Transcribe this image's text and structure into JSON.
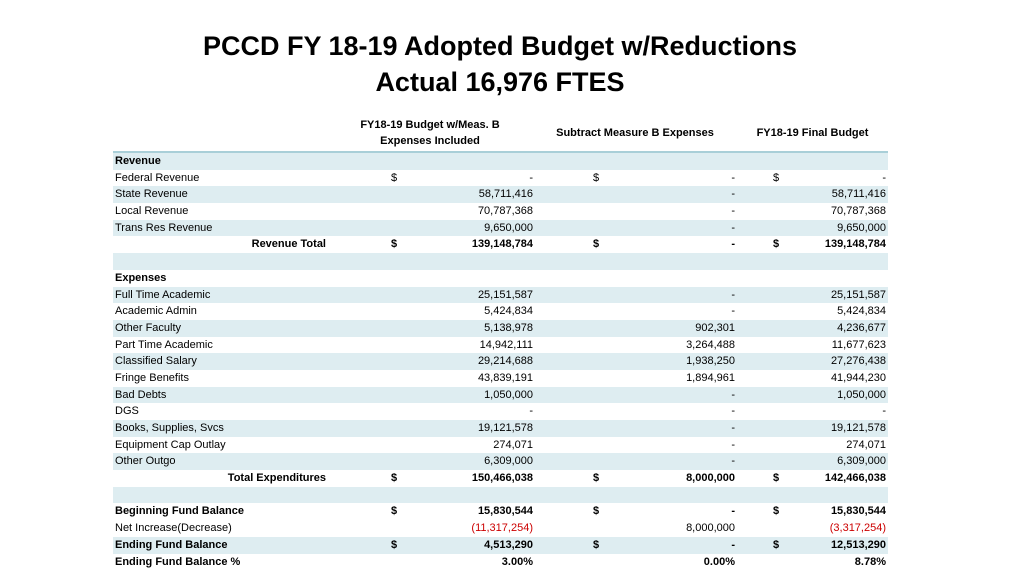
{
  "title": {
    "line1": "PCCD FY 18-19 Adopted Budget w/Reductions",
    "line2": "Actual 16,976 FTES"
  },
  "columns": {
    "col1_line1": "FY18-19 Budget w/Meas. B",
    "col1_line2": "Expenses Included",
    "col2": "Subtract Measure B Expenses",
    "col3": "FY18-19 Final Budget"
  },
  "rows": [
    {
      "label": "Revenue",
      "shade": true,
      "bold": true
    },
    {
      "label": "Federal Revenue",
      "d1": "$",
      "v1": "-",
      "d2": "$",
      "v2": "-",
      "d3": "$",
      "v3": "-"
    },
    {
      "label": "State Revenue",
      "shade": true,
      "v1": "58,711,416",
      "v2": "-",
      "v3": "58,711,416"
    },
    {
      "label": "Local Revenue",
      "v1": "70,787,368",
      "v2": "-",
      "v3": "70,787,368"
    },
    {
      "label": "Trans Res Revenue",
      "shade": true,
      "v1": "9,650,000",
      "v2": "-",
      "v3": "9,650,000"
    },
    {
      "label": "Revenue Total",
      "bold": true,
      "right": true,
      "d1": "$",
      "v1": "139,148,784",
      "d2": "$",
      "v2": "-",
      "d3": "$",
      "v3": "139,148,784"
    },
    {
      "label": "",
      "shade": true
    },
    {
      "label": "Expenses",
      "bold": true
    },
    {
      "label": "Full Time Academic",
      "shade": true,
      "v1": "25,151,587",
      "v2": "-",
      "v3": "25,151,587"
    },
    {
      "label": "Academic Admin",
      "v1": "5,424,834",
      "v2": "-",
      "v3": "5,424,834"
    },
    {
      "label": "Other Faculty",
      "shade": true,
      "v1": "5,138,978",
      "v2": "902,301",
      "v3": "4,236,677"
    },
    {
      "label": "Part Time Academic",
      "v1": "14,942,111",
      "v2": "3,264,488",
      "v3": "11,677,623"
    },
    {
      "label": "Classified Salary",
      "shade": true,
      "v1": "29,214,688",
      "v2": "1,938,250",
      "v3": "27,276,438"
    },
    {
      "label": "Fringe Benefits",
      "v1": "43,839,191",
      "v2": "1,894,961",
      "v3": "41,944,230"
    },
    {
      "label": "Bad Debts",
      "shade": true,
      "v1": "1,050,000",
      "v2": "-",
      "v3": "1,050,000"
    },
    {
      "label": "DGS",
      "v1": "-",
      "v2": "-",
      "v3": "-"
    },
    {
      "label": "Books, Supplies, Svcs",
      "shade": true,
      "v1": "19,121,578",
      "v2": "-",
      "v3": "19,121,578"
    },
    {
      "label": "Equipment Cap Outlay",
      "v1": "274,071",
      "v2": "-",
      "v3": "274,071"
    },
    {
      "label": "Other Outgo",
      "shade": true,
      "v1": "6,309,000",
      "v2": "-",
      "v3": "6,309,000"
    },
    {
      "label": "Total Expenditures",
      "bold": true,
      "right": true,
      "d1": "$",
      "v1": "150,466,038",
      "d2": "$",
      "v2": "8,000,000",
      "d3": "$",
      "v3": "142,466,038"
    },
    {
      "label": "",
      "shade": true
    },
    {
      "label": "Beginning Fund Balance",
      "bold": true,
      "d1": "$",
      "v1": "15,830,544",
      "d2": "$",
      "v2": "-",
      "d3": "$",
      "v3": "15,830,544"
    },
    {
      "label": "Net Increase(Decrease)",
      "v1": "(11,317,254)",
      "v1neg": true,
      "v2": "8,000,000",
      "v3": "(3,317,254)",
      "v3neg": true
    },
    {
      "label": "Ending Fund Balance",
      "bold": true,
      "shade": true,
      "d1": "$",
      "v1": "4,513,290",
      "d2": "$",
      "v2": "-",
      "d3": "$",
      "v3": "12,513,290"
    },
    {
      "label": "Ending Fund Balance %",
      "bold": true,
      "v1": "3.00%",
      "v2": "0.00%",
      "v3": "8.78%"
    }
  ]
}
